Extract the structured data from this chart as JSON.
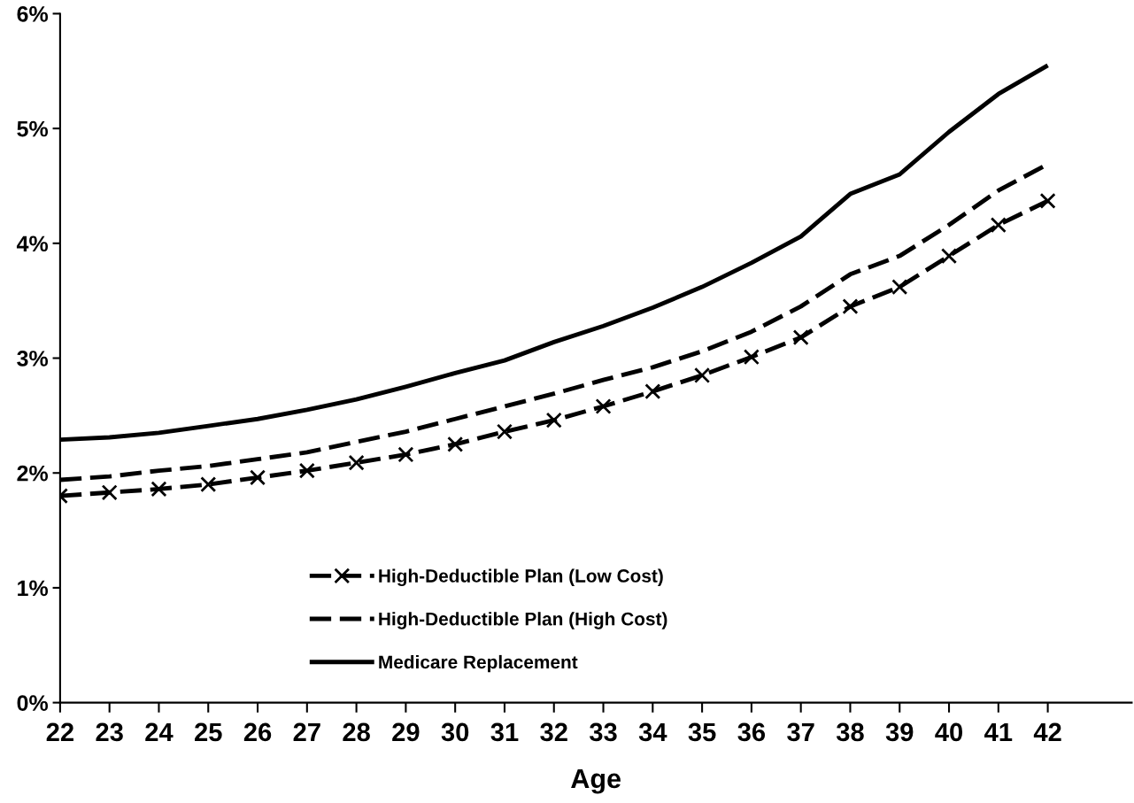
{
  "chart_data": {
    "type": "line",
    "xlabel": "Age",
    "categories": [
      "22",
      "23",
      "24",
      "25",
      "26",
      "27",
      "28",
      "29",
      "30",
      "31",
      "32",
      "33",
      "34",
      "35",
      "36",
      "37",
      "38",
      "39",
      "40",
      "41",
      "42"
    ],
    "series": [
      {
        "name": "High-Deductible Plan (Low Cost)",
        "color": "#000000",
        "line_style": "dashed",
        "marker": "cross",
        "values": [
          1.8,
          1.83,
          1.86,
          1.9,
          1.96,
          2.02,
          2.09,
          2.16,
          2.25,
          2.36,
          2.46,
          2.58,
          2.71,
          2.85,
          3.01,
          3.18,
          3.45,
          3.62,
          3.89,
          4.16,
          4.37
        ]
      },
      {
        "name": "High-Deductible Plan (High Cost)",
        "color": "#000000",
        "line_style": "dashed",
        "marker": "none",
        "values": [
          1.94,
          1.97,
          2.02,
          2.06,
          2.12,
          2.18,
          2.27,
          2.36,
          2.47,
          2.58,
          2.69,
          2.81,
          2.92,
          3.06,
          3.23,
          3.45,
          3.73,
          3.89,
          4.16,
          4.46,
          4.69
        ]
      },
      {
        "name": "Medicare Replacement",
        "color": "#000000",
        "line_style": "solid",
        "marker": "none",
        "values": [
          2.29,
          2.31,
          2.35,
          2.41,
          2.47,
          2.55,
          2.64,
          2.75,
          2.87,
          2.98,
          3.14,
          3.28,
          3.44,
          3.62,
          3.83,
          4.06,
          4.43,
          4.6,
          4.97,
          5.3,
          5.55
        ]
      }
    ],
    "ylim": [
      0,
      6
    ],
    "yticks": [
      {
        "value": 0,
        "label": "0%"
      },
      {
        "value": 1,
        "label": "1%"
      },
      {
        "value": 2,
        "label": "2%"
      },
      {
        "value": 3,
        "label": "3%"
      },
      {
        "value": 4,
        "label": "4%"
      },
      {
        "value": 5,
        "label": "5%"
      },
      {
        "value": 6,
        "label": "6%"
      }
    ],
    "grid": false,
    "legend": "bottom"
  }
}
